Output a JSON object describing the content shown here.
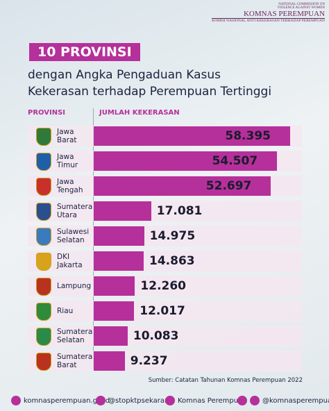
{
  "logo": {
    "top_line_1": "NATIONAL COMMISSION ON",
    "top_line_2": "VIOLENCE AGAINST WOMEN",
    "name": "KOMNAS PEREMPUAN",
    "subtitle": "KOMISI NASIONAL ANTI KEKERASAN TERHADAP PEREMPUAN"
  },
  "chart_data": {
    "type": "bar",
    "orientation": "horizontal",
    "title": "10 PROVINSI",
    "subtitle": [
      "dengan Angka Pengaduan Kasus",
      "Kekerasan terhadap Perempuan Tertinggi"
    ],
    "category_header": "PROVINSI",
    "value_header": "JUMLAH KEKERASAN",
    "categories": [
      "Jawa Barat",
      "Jawa Timur",
      "Jawa Tengah",
      "Sumatera Utara",
      "Sulawesi Selatan",
      "DKI Jakarta",
      "Lampung",
      "Riau",
      "Sumatera Selatan",
      "Sumatera Barat"
    ],
    "values": [
      58395,
      54507,
      52697,
      17081,
      14975,
      14863,
      12260,
      12017,
      10083,
      9237
    ],
    "value_labels": [
      "58.395",
      "54.507",
      "52.697",
      "17.081",
      "14.975",
      "14.863",
      "12.260",
      "12.017",
      "10.083",
      "9.237"
    ],
    "color": "#b5309a",
    "source": "Sumber: Catatan Tahunan Komnas Perempuan 2022"
  },
  "footer": {
    "website": "komnasperempuan.go.id",
    "instagram": "@stopktpsekarang",
    "youtube": "Komnas Perempuan",
    "social": "@komnasperempuan"
  }
}
